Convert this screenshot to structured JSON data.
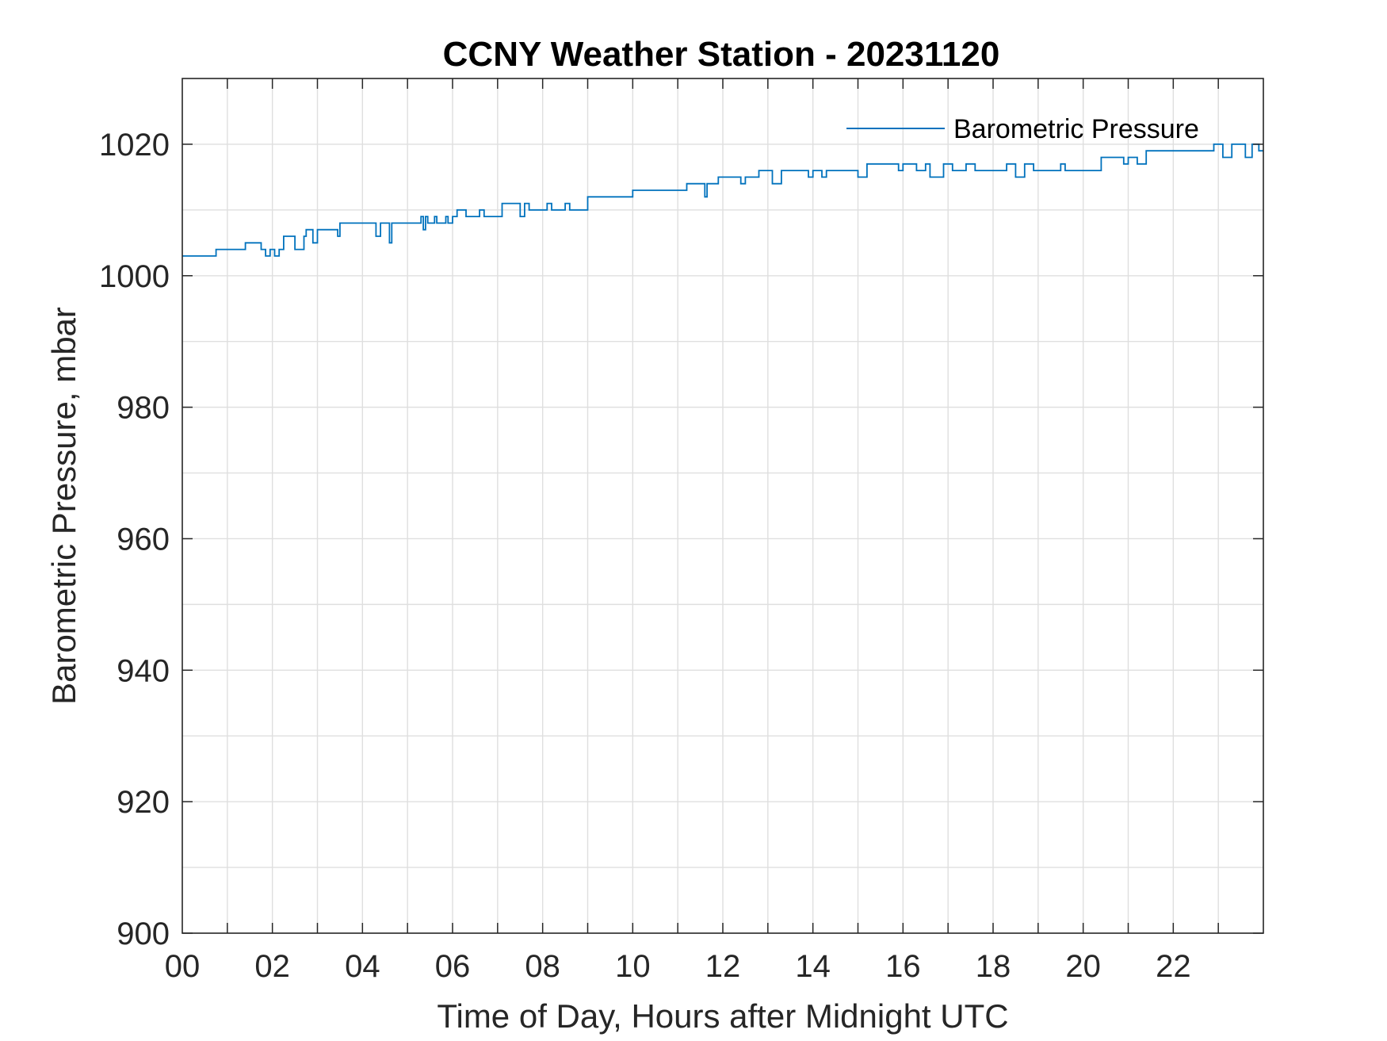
{
  "chart_data": {
    "type": "line",
    "title": "CCNY Weather Station - 20231120",
    "xlabel": "Time of Day, Hours after Midnight UTC",
    "ylabel": "Barometric Pressure, mbar",
    "xlim": [
      0,
      24
    ],
    "ylim": [
      900,
      1030
    ],
    "xticks": [
      0,
      2,
      4,
      6,
      8,
      10,
      12,
      14,
      16,
      18,
      20,
      22
    ],
    "xtick_labels": [
      "00",
      "02",
      "04",
      "06",
      "08",
      "10",
      "12",
      "14",
      "16",
      "18",
      "20",
      "22"
    ],
    "xgrid_step": 1,
    "yticks": [
      900,
      920,
      940,
      960,
      980,
      1000,
      1020
    ],
    "ygrid_step": 10,
    "grid": true,
    "legend": {
      "position": "top-right",
      "entries": [
        "Barometric Pressure"
      ]
    },
    "line_color": "#0072BD",
    "series": [
      {
        "name": "Barometric Pressure",
        "x": [
          0.0,
          0.75,
          1.4,
          1.75,
          1.85,
          1.95,
          2.05,
          2.15,
          2.25,
          2.5,
          2.7,
          2.75,
          2.9,
          3.0,
          3.45,
          3.5,
          4.3,
          4.4,
          4.6,
          4.65,
          5.3,
          5.35,
          5.4,
          5.45,
          5.6,
          5.65,
          5.85,
          5.9,
          6.0,
          6.1,
          6.3,
          6.6,
          6.7,
          7.1,
          7.5,
          7.6,
          7.7,
          8.1,
          8.2,
          8.5,
          8.6,
          9.0,
          10.0,
          11.2,
          11.6,
          11.65,
          11.9,
          12.4,
          12.5,
          12.8,
          13.1,
          13.3,
          13.9,
          14.0,
          14.2,
          14.3,
          15.0,
          15.2,
          15.9,
          16.0,
          16.3,
          16.5,
          16.6,
          16.9,
          17.1,
          17.4,
          17.6,
          18.3,
          18.5,
          18.7,
          18.9,
          19.5,
          19.6,
          20.4,
          20.9,
          21.0,
          21.2,
          21.4,
          22.9,
          23.1,
          23.3,
          23.6,
          23.75,
          23.9
        ],
        "y": [
          1003,
          1004,
          1005,
          1004,
          1003,
          1004,
          1003,
          1004,
          1006,
          1004,
          1006,
          1007,
          1005,
          1007,
          1006,
          1008,
          1006,
          1008,
          1005,
          1008,
          1009,
          1007,
          1009,
          1008,
          1009,
          1008,
          1009,
          1008,
          1009,
          1010,
          1009,
          1010,
          1009,
          1011,
          1009,
          1011,
          1010,
          1011,
          1010,
          1011,
          1010,
          1012,
          1013,
          1014,
          1012,
          1014,
          1015,
          1014,
          1015,
          1016,
          1014,
          1016,
          1015,
          1016,
          1015,
          1016,
          1015,
          1017,
          1016,
          1017,
          1016,
          1017,
          1015,
          1017,
          1016,
          1017,
          1016,
          1017,
          1015,
          1017,
          1016,
          1017,
          1016,
          1018,
          1017,
          1018,
          1017,
          1019,
          1020,
          1018,
          1020,
          1018,
          1020,
          1019
        ]
      }
    ]
  }
}
